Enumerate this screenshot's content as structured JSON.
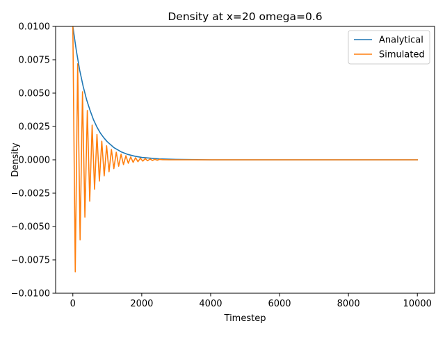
{
  "chart_data": {
    "type": "line",
    "title": "Density at x=20 omega=0.6",
    "xlabel": "Timestep",
    "ylabel": "Density",
    "xlim": [
      -500,
      10500
    ],
    "ylim": [
      -0.01,
      0.01
    ],
    "xticks": [
      0,
      2000,
      4000,
      6000,
      8000,
      10000
    ],
    "xtick_labels": [
      "0",
      "2000",
      "4000",
      "6000",
      "8000",
      "10000"
    ],
    "yticks": [
      -0.01,
      -0.0075,
      -0.005,
      -0.0025,
      0.0,
      0.0025,
      0.005,
      0.0075,
      0.01
    ],
    "ytick_labels": [
      "−0.0100",
      "−0.0075",
      "−0.0050",
      "−0.0025",
      "0.0000",
      "0.0025",
      "0.0050",
      "0.0075",
      "0.0100"
    ],
    "grid": false,
    "legend_position": "top-right",
    "series": [
      {
        "name": "Analytical",
        "color": "#1f77b4",
        "x": [
          0,
          100,
          200,
          300,
          400,
          500,
          600,
          700,
          800,
          900,
          1000,
          1200,
          1400,
          1600,
          1800,
          2000,
          2500,
          3000,
          4000,
          5000,
          6000,
          7000,
          8000,
          9000,
          10000
        ],
        "y": [
          0.01,
          0.0082,
          0.0067,
          0.0055,
          0.0045,
          0.0037,
          0.003,
          0.00245,
          0.002,
          0.00165,
          0.00135,
          0.0009,
          0.0006,
          0.0004,
          0.00027,
          0.00018,
          7e-05,
          3e-05,
          0.0,
          0.0,
          0.0,
          0.0,
          0.0,
          0.0,
          0.0
        ]
      },
      {
        "name": "Simulated",
        "color": "#ff7f0e",
        "x": [
          0,
          70,
          140,
          210,
          280,
          350,
          420,
          490,
          560,
          630,
          700,
          770,
          840,
          910,
          980,
          1050,
          1120,
          1190,
          1260,
          1330,
          1400,
          1470,
          1540,
          1610,
          1680,
          1750,
          1820,
          1890,
          1960,
          2030,
          2100,
          2170,
          2240,
          2310,
          2380,
          2450,
          2520,
          2600,
          2800,
          3000,
          3500,
          4000,
          5000,
          6000,
          7000,
          8000,
          9000,
          10000
        ],
        "y": [
          0.01,
          -0.0084,
          0.0072,
          -0.006,
          0.0051,
          -0.0043,
          0.0037,
          -0.0031,
          0.0026,
          -0.0022,
          0.0019,
          -0.0016,
          0.0014,
          -0.0012,
          0.00105,
          -0.0009,
          0.00078,
          -0.00066,
          0.00057,
          -0.00048,
          0.00042,
          -0.00036,
          0.00031,
          -0.00026,
          0.00022,
          -0.00019,
          0.00016,
          -0.00014,
          0.00012,
          -0.0001,
          9e-05,
          -7e-05,
          6e-05,
          -5e-05,
          4e-05,
          -3e-05,
          3e-05,
          1e-05,
          0.0,
          0.0,
          0.0,
          0.0,
          0.0,
          0.0,
          0.0,
          0.0,
          0.0,
          0.0
        ]
      }
    ]
  }
}
